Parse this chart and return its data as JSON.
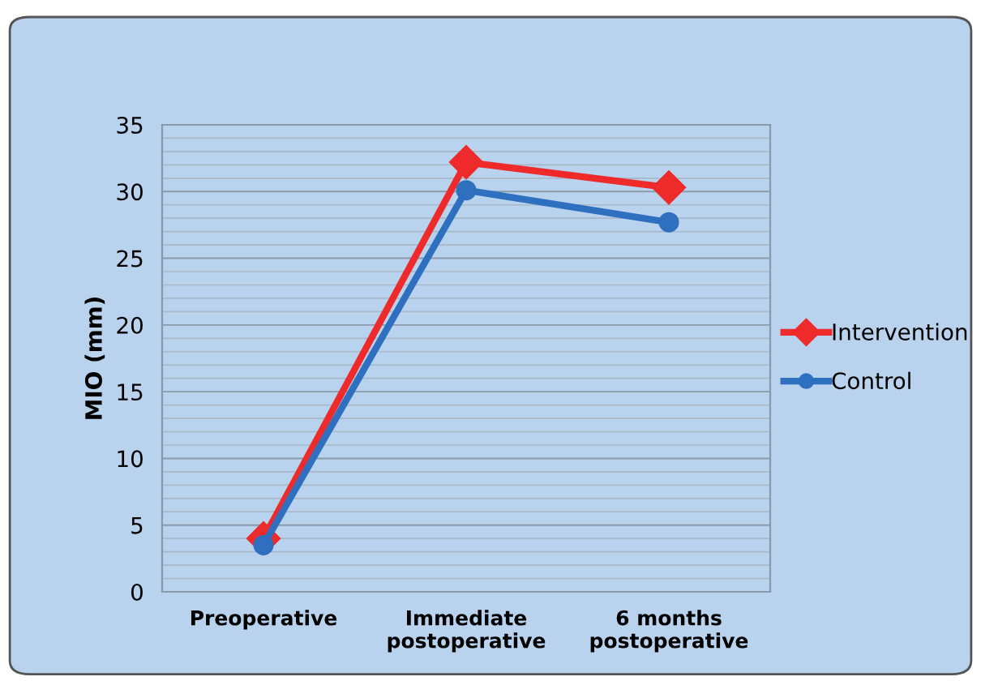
{
  "chart_data": {
    "type": "line",
    "ylabel": "MIO (mm)",
    "categories": [
      "Preoperative",
      "Immediate\npostoperative",
      "6 months\npostoperative"
    ],
    "series": [
      {
        "name": "Intervention",
        "color": "#ee2a2a",
        "marker": "diamond",
        "values": [
          4.0,
          32.2,
          30.3
        ]
      },
      {
        "name": "Control",
        "color": "#2e6fbf",
        "marker": "circle",
        "values": [
          3.5,
          30.1,
          27.7
        ]
      }
    ],
    "ylim": [
      0,
      35
    ],
    "yticks": [
      0,
      {
        "value": 1,
        "label": null
      },
      {
        "value": 2,
        "label": null
      },
      {
        "value": 3,
        "label": null
      },
      {
        "value": 4,
        "label": null
      },
      5,
      {
        "value": 6,
        "label": null
      },
      {
        "value": 7,
        "label": null
      },
      {
        "value": 8,
        "label": null
      },
      {
        "value": 9,
        "label": null
      },
      10,
      {
        "value": 11,
        "label": null
      },
      {
        "value": 12,
        "label": null
      },
      {
        "value": 13,
        "label": null
      },
      {
        "value": 14,
        "label": null
      },
      15,
      {
        "value": 16,
        "label": null
      },
      {
        "value": 17,
        "label": null
      },
      {
        "value": 18,
        "label": null
      },
      {
        "value": 19,
        "label": null
      },
      20,
      {
        "value": 21,
        "label": null
      },
      {
        "value": 22,
        "label": null
      },
      {
        "value": 23,
        "label": null
      },
      {
        "value": 24,
        "label": null
      },
      25,
      {
        "value": 26,
        "label": null
      },
      {
        "value": 27,
        "label": null
      },
      {
        "value": 28,
        "label": null
      },
      {
        "value": 29,
        "label": null
      },
      30,
      {
        "value": 31,
        "label": null
      },
      {
        "value": 32,
        "label": null
      },
      {
        "value": 33,
        "label": null
      },
      {
        "value": 34,
        "label": null
      },
      35
    ],
    "grid": "y",
    "legend": "right"
  }
}
